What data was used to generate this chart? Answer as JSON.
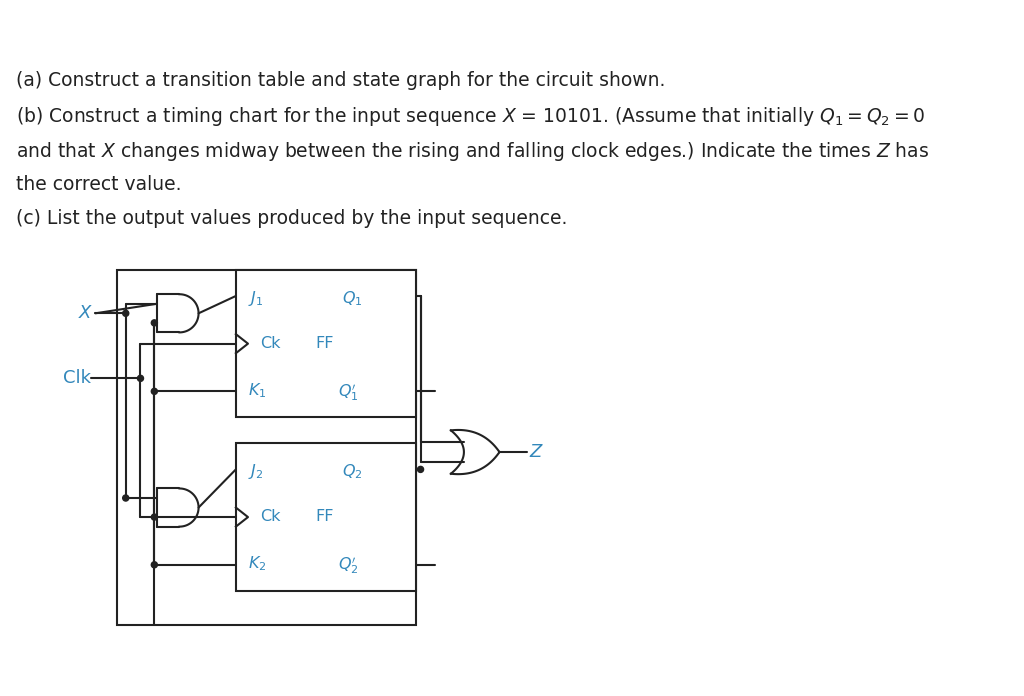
{
  "bg_color": "#ffffff",
  "text_color": "#222222",
  "cyan_color": "#3388bb",
  "line_color": "#222222",
  "figsize": [
    10.24,
    6.96
  ],
  "dpi": 100,
  "text_lines": [
    "(a) Construct a transition table and state graph for the circuit shown.",
    "(b) Construct a timing chart for the input sequence X = 10101. (Assume that initially Q1 = Q2 = 0",
    "and that X changes midway between the rising and falling clock edges.) Indicate the times Z has",
    "the correct value.",
    "(c) List the output values produced by the input sequence."
  ]
}
